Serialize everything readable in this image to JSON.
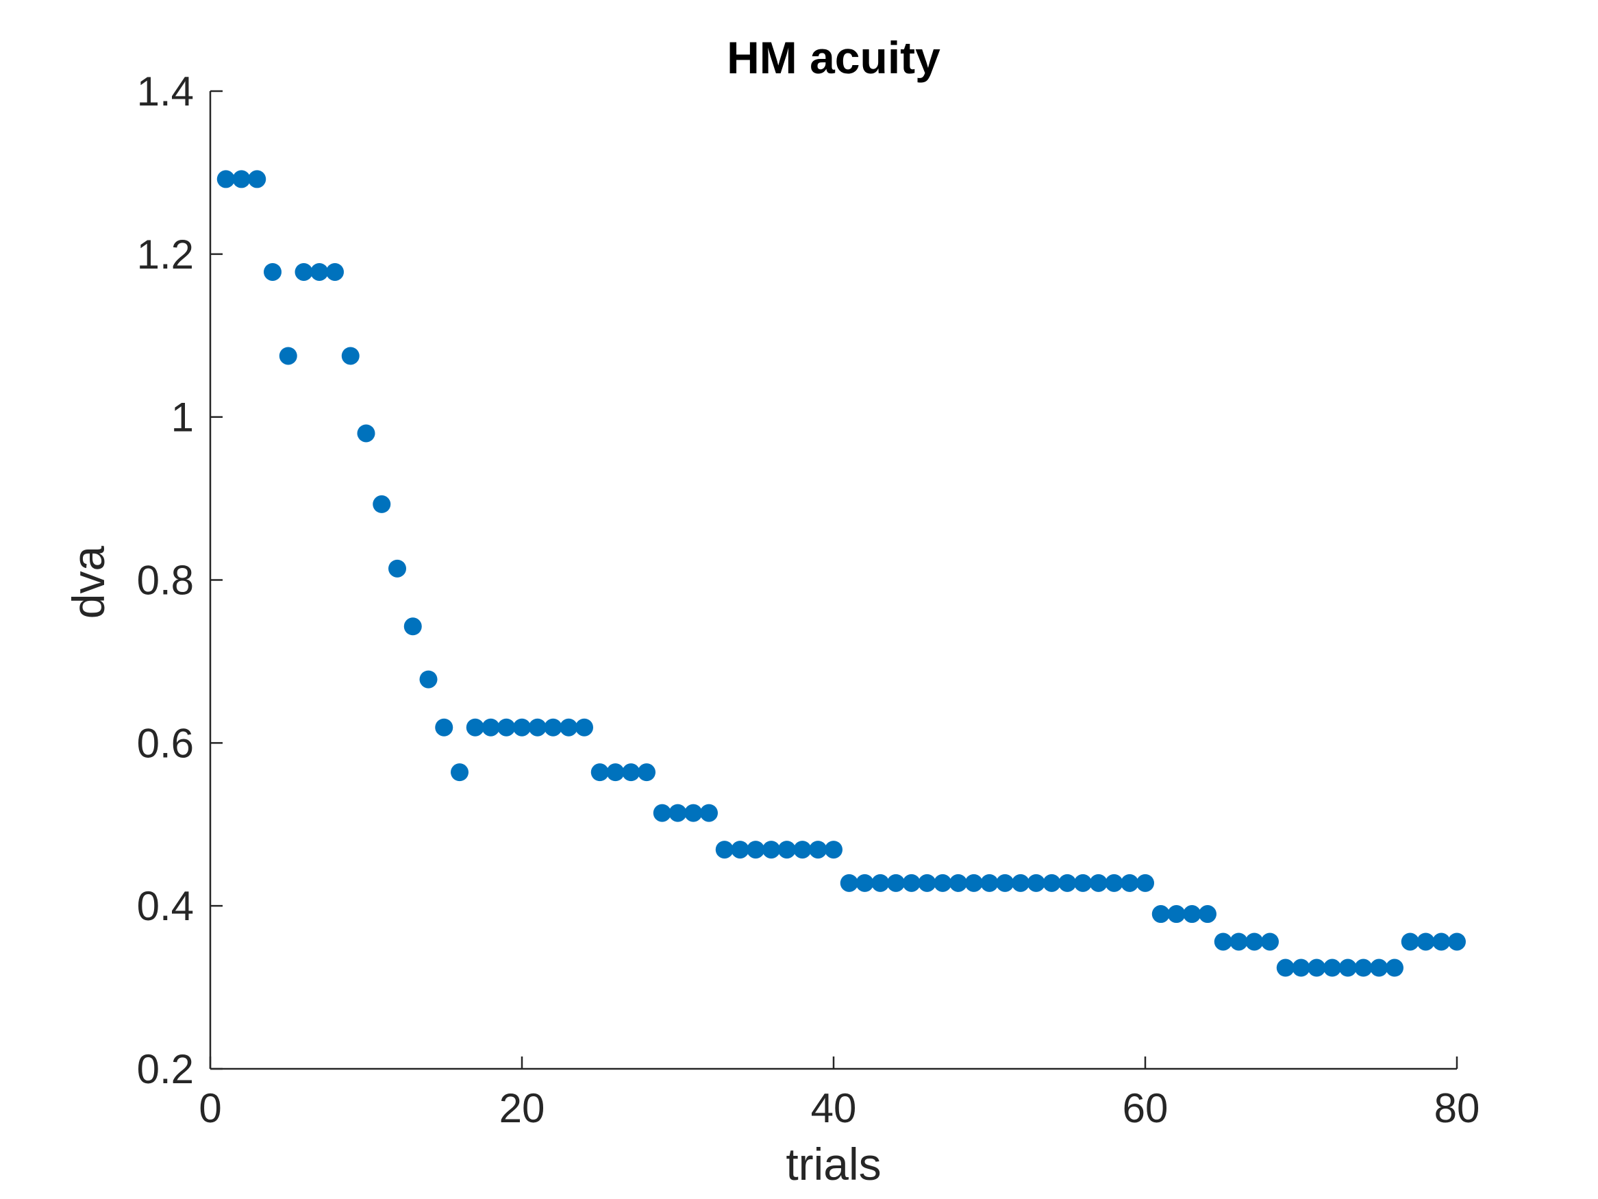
{
  "chart_data": {
    "type": "scatter",
    "title": "HM acuity",
    "xlabel": "trials",
    "ylabel": "dva",
    "xlim": [
      0,
      80
    ],
    "ylim": [
      0.2,
      1.4
    ],
    "xticks": [
      0,
      20,
      40,
      60,
      80
    ],
    "yticks": [
      0.2,
      0.4,
      0.6,
      0.8,
      1,
      1.2,
      1.4
    ],
    "xtick_labels": [
      "0",
      "20",
      "40",
      "60",
      "80"
    ],
    "ytick_labels": [
      "0.2",
      "0.4",
      "0.6",
      "0.8",
      "1",
      "1.2",
      "1.4"
    ],
    "grid": false,
    "marker_color": "#0072BD",
    "series": [
      {
        "x": [
          1,
          2,
          3,
          4,
          5,
          6,
          7,
          8,
          9,
          10,
          11,
          12,
          13,
          14,
          15,
          16,
          17,
          18,
          19,
          20,
          21,
          22,
          23,
          24,
          25,
          26,
          27,
          28,
          29,
          30,
          31,
          32,
          33,
          34,
          35,
          36,
          37,
          38,
          39,
          40,
          41,
          42,
          43,
          44,
          45,
          46,
          47,
          48,
          49,
          50,
          51,
          52,
          53,
          54,
          55,
          56,
          57,
          58,
          59,
          60,
          61,
          62,
          63,
          64,
          65,
          66,
          67,
          68,
          69,
          70,
          71,
          72,
          73,
          74,
          75,
          76,
          77,
          78,
          79,
          80
        ],
        "y": [
          1.292,
          1.292,
          1.292,
          1.178,
          1.075,
          1.178,
          1.178,
          1.178,
          1.075,
          0.98,
          0.893,
          0.814,
          0.743,
          0.678,
          0.619,
          0.564,
          0.619,
          0.619,
          0.619,
          0.619,
          0.619,
          0.619,
          0.619,
          0.619,
          0.564,
          0.564,
          0.564,
          0.564,
          0.514,
          0.514,
          0.514,
          0.514,
          0.469,
          0.469,
          0.469,
          0.469,
          0.469,
          0.469,
          0.469,
          0.469,
          0.428,
          0.428,
          0.428,
          0.428,
          0.428,
          0.428,
          0.428,
          0.428,
          0.428,
          0.428,
          0.428,
          0.428,
          0.428,
          0.428,
          0.428,
          0.428,
          0.428,
          0.428,
          0.428,
          0.428,
          0.39,
          0.39,
          0.39,
          0.39,
          0.356,
          0.356,
          0.356,
          0.356,
          0.324,
          0.324,
          0.324,
          0.324,
          0.324,
          0.324,
          0.324,
          0.324,
          0.356,
          0.356,
          0.356,
          0.356
        ]
      }
    ]
  }
}
